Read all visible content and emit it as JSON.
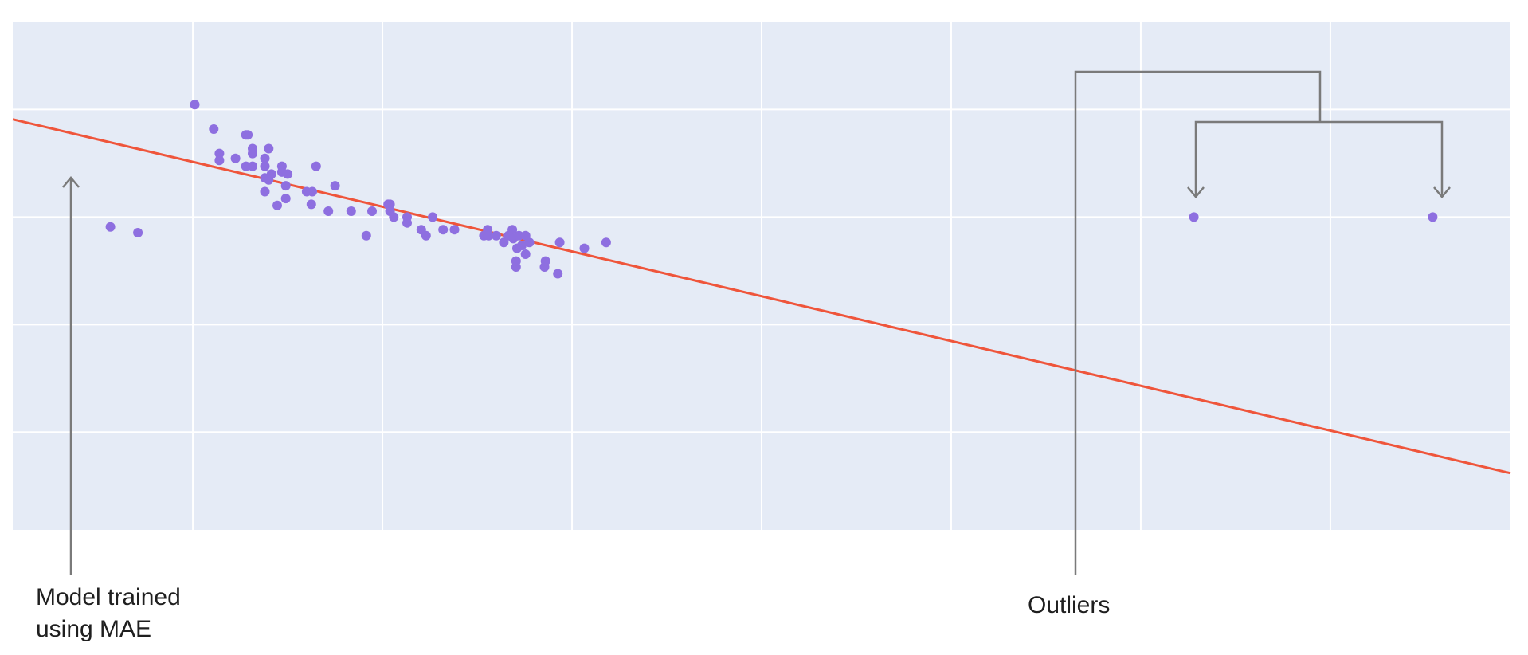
{
  "chart_data": {
    "type": "scatter",
    "title": "",
    "xlabel": "",
    "ylabel": "",
    "xlim": [
      0,
      1580
    ],
    "ylim": [
      0,
      5.2
    ],
    "x_ticks": [
      190,
      390,
      590,
      790,
      990,
      1190,
      1390
    ],
    "y_ticks": [
      1.0,
      2.1,
      3.2,
      4.3
    ],
    "grid": true,
    "legend": "none",
    "colors": {
      "plot_bg": "#e5ebf6",
      "grid": "#ffffff",
      "points": "#8e6fe0",
      "fit_line": "#ef553b",
      "annotation": "#7a7a7a"
    },
    "series": [
      {
        "type": "scatter",
        "points": [
          [
            103,
            3.1
          ],
          [
            132,
            3.04
          ],
          [
            192,
            4.35
          ],
          [
            212,
            4.1
          ],
          [
            218,
            3.85
          ],
          [
            218,
            3.78
          ],
          [
            235,
            3.8
          ],
          [
            246,
            4.04
          ],
          [
            248,
            4.04
          ],
          [
            246,
            3.72
          ],
          [
            253,
            3.9
          ],
          [
            253,
            3.85
          ],
          [
            253,
            3.72
          ],
          [
            266,
            3.8
          ],
          [
            266,
            3.72
          ],
          [
            266,
            3.6
          ],
          [
            270,
            3.58
          ],
          [
            270,
            3.9
          ],
          [
            273,
            3.64
          ],
          [
            266,
            3.46
          ],
          [
            279,
            3.32
          ],
          [
            284,
            3.72
          ],
          [
            284,
            3.66
          ],
          [
            290,
            3.64
          ],
          [
            288,
            3.52
          ],
          [
            288,
            3.39
          ],
          [
            310,
            3.46
          ],
          [
            316,
            3.46
          ],
          [
            315,
            3.33
          ],
          [
            320,
            3.72
          ],
          [
            333,
            3.26
          ],
          [
            340,
            3.52
          ],
          [
            357,
            3.26
          ],
          [
            373,
            3.01
          ],
          [
            379,
            3.26
          ],
          [
            396,
            3.33
          ],
          [
            398,
            3.33
          ],
          [
            398,
            3.26
          ],
          [
            402,
            3.2
          ],
          [
            416,
            3.14
          ],
          [
            416,
            3.2
          ],
          [
            443,
            3.2
          ],
          [
            431,
            3.07
          ],
          [
            436,
            3.01
          ],
          [
            454,
            3.07
          ],
          [
            466,
            3.07
          ],
          [
            497,
            3.01
          ],
          [
            501,
            3.07
          ],
          [
            502,
            3.01
          ],
          [
            510,
            3.01
          ],
          [
            518,
            2.94
          ],
          [
            523,
            3.01
          ],
          [
            527,
            3.07
          ],
          [
            528,
            2.98
          ],
          [
            532,
            2.88
          ],
          [
            534,
            3.01
          ],
          [
            537,
            2.91
          ],
          [
            541,
            2.82
          ],
          [
            541,
            3.01
          ],
          [
            545,
            2.94
          ],
          [
            531,
            2.69
          ],
          [
            531,
            2.75
          ],
          [
            561,
            2.69
          ],
          [
            562,
            2.75
          ],
          [
            575,
            2.62
          ],
          [
            577,
            2.94
          ],
          [
            603,
            2.88
          ],
          [
            626,
            2.94
          ]
        ]
      },
      {
        "type": "scatter",
        "role": "outliers",
        "points": [
          [
            1246,
            3.2
          ],
          [
            1498,
            3.2
          ]
        ]
      },
      {
        "type": "line",
        "role": "fit",
        "points": [
          [
            0,
            4.2
          ],
          [
            1580,
            0.58
          ]
        ]
      }
    ],
    "annotations": [
      {
        "text": "Model trained using MAE",
        "lines": [
          "Model trained",
          "using MAE"
        ]
      },
      {
        "text": "Outliers"
      }
    ]
  }
}
